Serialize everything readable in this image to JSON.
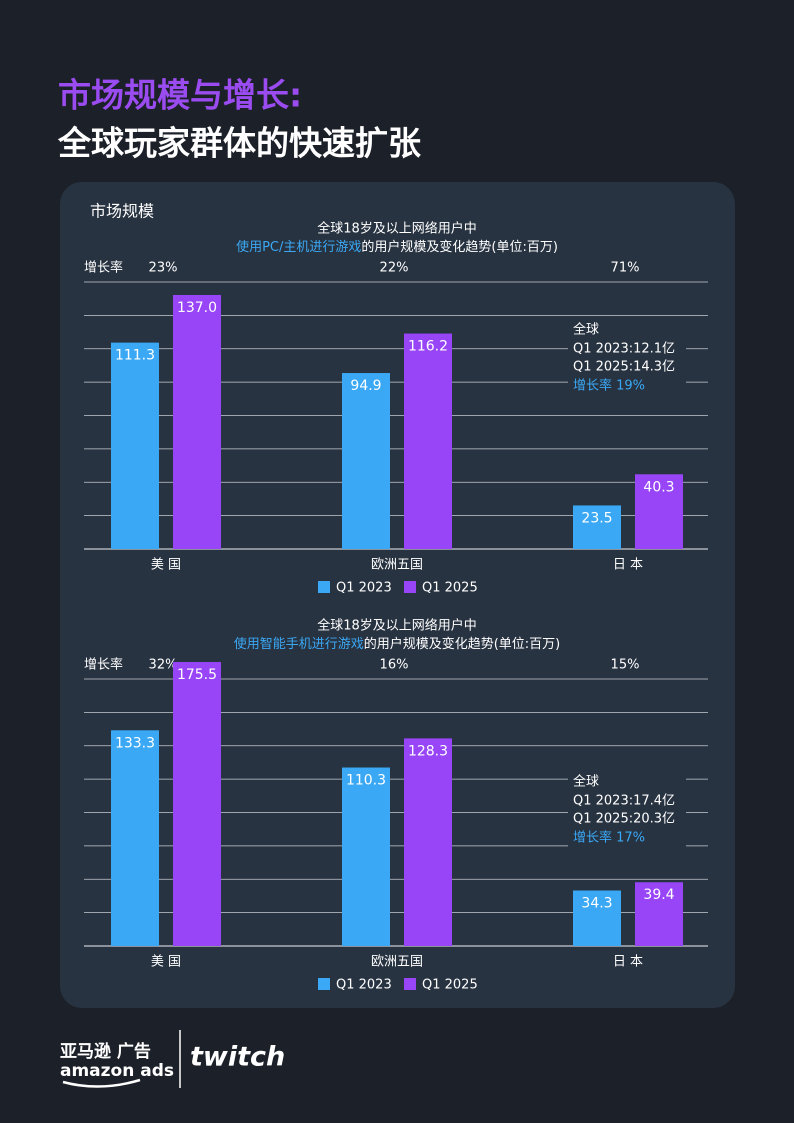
{
  "header": {
    "title": "市场规模与增长:",
    "subtitle": "全球玩家群体的快速扩张"
  },
  "section_title": "市场规模",
  "chart_data": [
    {
      "type": "bar",
      "title": "全球18岁及以上网络用户中",
      "subtitle_highlight": "使用PC/主机进行游戏",
      "subtitle": "的用户规模及变化趋势(单位:百万)",
      "growth_label": "增长率",
      "growth": [
        "23%",
        "22%",
        "71%"
      ],
      "categories": [
        "美 国",
        "欧洲五国",
        "日 本"
      ],
      "series": [
        {
          "name": "Q1 2023",
          "color": "#3aa8f5",
          "values": [
            111.3,
            94.9,
            23.5
          ],
          "value_labels": [
            "111.3",
            "94.9",
            "23.5"
          ]
        },
        {
          "name": "Q1 2025",
          "color": "#9845f7",
          "values": [
            137.0,
            116.2,
            40.3
          ],
          "value_labels": [
            "137.0",
            "116.2",
            "40.3"
          ]
        }
      ],
      "ylim": [
        0,
        144
      ],
      "grid": true,
      "annotation": {
        "title": "全球",
        "lines": [
          "Q1 2023:12.1亿",
          "Q1 2025:14.3亿"
        ],
        "growth": "增长率 19%"
      }
    },
    {
      "type": "bar",
      "title": "全球18岁及以上网络用户中",
      "subtitle_highlight": "使用智能手机进行游戏",
      "subtitle": "的用户规模及变化趋势(单位:百万)",
      "growth_label": "增长率",
      "growth": [
        "32%",
        "16%",
        "15%"
      ],
      "categories": [
        "美 国",
        "欧洲五国",
        "日 本"
      ],
      "series": [
        {
          "name": "Q1 2023",
          "color": "#3aa8f5",
          "values": [
            133.3,
            110.3,
            34.3
          ],
          "value_labels": [
            "133.3",
            "110.3",
            "34.3"
          ]
        },
        {
          "name": "Q1 2025",
          "color": "#9845f7",
          "values": [
            175.5,
            128.3,
            39.4
          ],
          "value_labels": [
            "175.5",
            "128.3",
            "39.4"
          ]
        }
      ],
      "ylim": [
        0,
        165
      ],
      "grid": true,
      "annotation": {
        "title": "全球",
        "lines": [
          "Q1 2023:17.4亿",
          "Q1 2025:20.3亿"
        ],
        "growth": "增长率 17%"
      }
    }
  ],
  "footer": {
    "brand_cn": "亚马逊 广告",
    "brand_en": "amazon ads",
    "partner": "twitch"
  }
}
